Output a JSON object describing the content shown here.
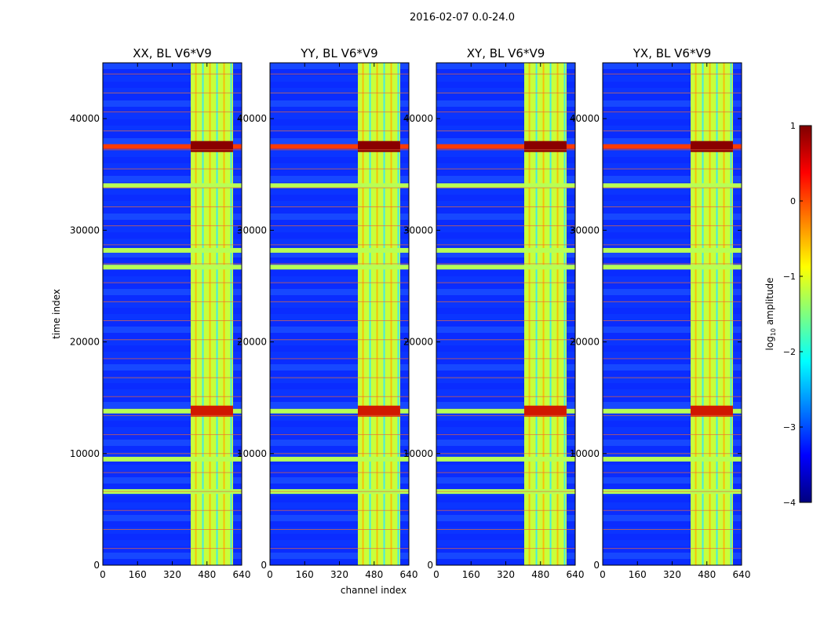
{
  "chart_data": {
    "type": "heatmap",
    "suptitle": "2016-02-07 0.0-24.0",
    "xlabel": "channel index",
    "ylabel": "time index",
    "xlim": [
      0,
      640
    ],
    "ylim": [
      0,
      45000
    ],
    "xticks": [
      "0",
      "160",
      "320",
      "480",
      "640"
    ],
    "yticks": [
      "0",
      "10000",
      "20000",
      "30000",
      "40000"
    ],
    "panels": [
      {
        "title": "XX, BL V6*V9"
      },
      {
        "title": "YY, BL V6*V9"
      },
      {
        "title": "XY, BL V6*V9"
      },
      {
        "title": "YX, BL V6*V9"
      }
    ],
    "colorbar": {
      "label_main": "log",
      "label_sub": "10",
      "label_tail": " amplitude",
      "range": [
        -4,
        1
      ],
      "ticks": [
        "1",
        "0",
        "−1",
        "−2",
        "−3",
        "−4"
      ],
      "colormap": [
        "#00007f",
        "#0000ff",
        "#007fff",
        "#00ffff",
        "#7fff7f",
        "#ffff00",
        "#ff7f00",
        "#ff0000",
        "#7f0000"
      ]
    },
    "rfi_bands_channel": [
      [
        405,
        600
      ]
    ],
    "strong_rfi_rows_time": [
      37500,
      13800,
      28200,
      26700,
      34000,
      9500,
      6600
    ]
  }
}
